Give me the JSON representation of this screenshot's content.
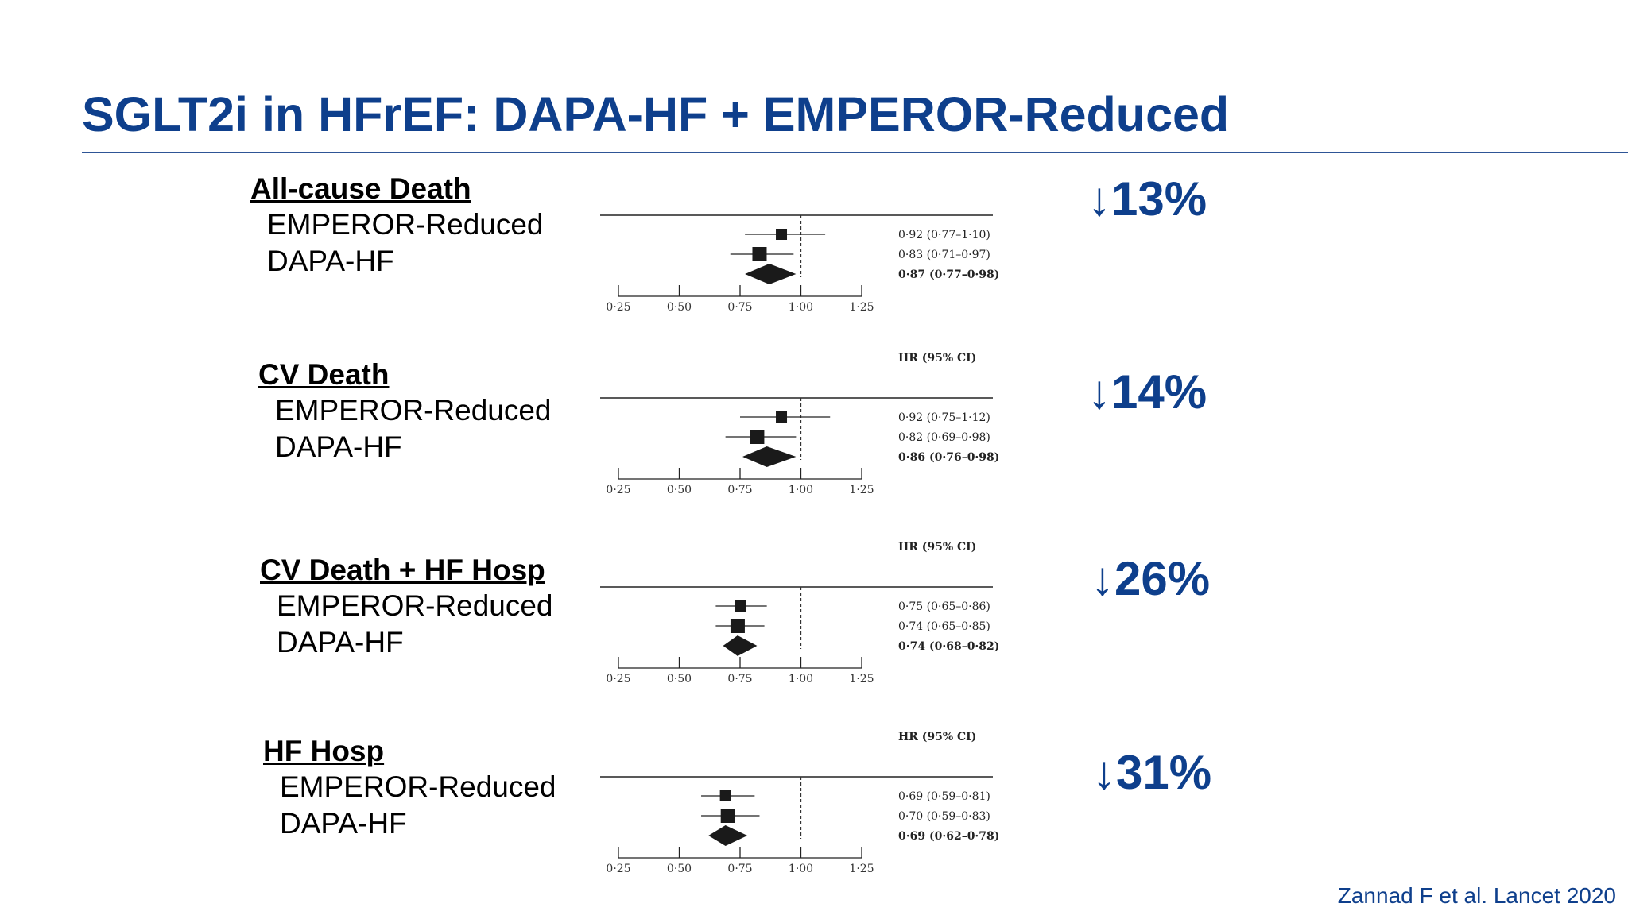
{
  "slide": {
    "title": "SGLT2i in HFrEF: DAPA-HF + EMPEROR-Reduced",
    "citation": "Zannad F et al. Lancet 2020"
  },
  "colors": {
    "title": "#0e3f8c",
    "accent_rule": "#2e5596",
    "marker": "#1a1a1a"
  },
  "panels": [
    {
      "heading": "All-cause Death",
      "rows": [
        "EMPEROR-Reduced",
        "DAPA-HF"
      ],
      "reduction": "13%",
      "arrow": "↓",
      "ci_header": ""
    },
    {
      "heading": "CV Death",
      "rows": [
        "EMPEROR-Reduced",
        "DAPA-HF"
      ],
      "reduction": "14%",
      "arrow": "↓",
      "ci_header": "HR (95% CI)"
    },
    {
      "heading": "CV Death + HF Hosp",
      "rows": [
        "EMPEROR-Reduced",
        "DAPA-HF"
      ],
      "reduction": "26%",
      "arrow": "↓",
      "ci_header": "HR (95% CI)"
    },
    {
      "heading": "HF Hosp",
      "rows": [
        "EMPEROR-Reduced",
        "DAPA-HF"
      ],
      "reduction": "31%",
      "arrow": "↓",
      "ci_header": "HR (95% CI)"
    }
  ],
  "chart_data": [
    {
      "type": "forest",
      "title": "All-cause Death",
      "ci_header": "",
      "xticks": [
        "0·25",
        "0·50",
        "0·75",
        "1·00",
        "1·25"
      ],
      "xlim": [
        0.25,
        1.25
      ],
      "reference_line": 1.0,
      "estimates": [
        {
          "kind": "study",
          "hr": 0.92,
          "lo": 0.77,
          "hi": 1.1,
          "label": "0·92 (0·77–1·10)"
        },
        {
          "kind": "study",
          "hr": 0.83,
          "lo": 0.71,
          "hi": 0.97,
          "label": "0·83 (0·71–0·97)"
        },
        {
          "kind": "pooled",
          "hr": 0.87,
          "lo": 0.77,
          "hi": 0.98,
          "label": "0·87 (0·77–0·98)"
        }
      ]
    },
    {
      "type": "forest",
      "title": "CV Death",
      "ci_header": "HR (95% CI)",
      "xticks": [
        "0·25",
        "0·50",
        "0·75",
        "1·00",
        "1·25"
      ],
      "xlim": [
        0.25,
        1.25
      ],
      "reference_line": 1.0,
      "estimates": [
        {
          "kind": "study",
          "hr": 0.92,
          "lo": 0.75,
          "hi": 1.12,
          "label": "0·92 (0·75–1·12)"
        },
        {
          "kind": "study",
          "hr": 0.82,
          "lo": 0.69,
          "hi": 0.98,
          "label": "0·82 (0·69–0·98)"
        },
        {
          "kind": "pooled",
          "hr": 0.86,
          "lo": 0.76,
          "hi": 0.98,
          "label": "0·86 (0·76–0·98)"
        }
      ]
    },
    {
      "type": "forest",
      "title": "CV Death + HF Hosp",
      "ci_header": "HR (95% CI)",
      "xticks": [
        "0·25",
        "0·50",
        "0·75",
        "1·00",
        "1·25"
      ],
      "xlim": [
        0.25,
        1.25
      ],
      "reference_line": 1.0,
      "estimates": [
        {
          "kind": "study",
          "hr": 0.75,
          "lo": 0.65,
          "hi": 0.86,
          "label": "0·75 (0·65–0·86)"
        },
        {
          "kind": "study",
          "hr": 0.74,
          "lo": 0.65,
          "hi": 0.85,
          "label": "0·74 (0·65–0·85)"
        },
        {
          "kind": "pooled",
          "hr": 0.74,
          "lo": 0.68,
          "hi": 0.82,
          "label": "0·74 (0·68–0·82)"
        }
      ]
    },
    {
      "type": "forest",
      "title": "HF Hosp",
      "ci_header": "HR (95% CI)",
      "xticks": [
        "0·25",
        "0·50",
        "0·75",
        "1·00",
        "1·25"
      ],
      "xlim": [
        0.25,
        1.25
      ],
      "reference_line": 1.0,
      "estimates": [
        {
          "kind": "study",
          "hr": 0.69,
          "lo": 0.59,
          "hi": 0.81,
          "label": "0·69 (0·59–0·81)"
        },
        {
          "kind": "study",
          "hr": 0.7,
          "lo": 0.59,
          "hi": 0.83,
          "label": "0·70 (0·59–0·83)"
        },
        {
          "kind": "pooled",
          "hr": 0.69,
          "lo": 0.62,
          "hi": 0.78,
          "label": "0·69 (0·62–0·78)"
        }
      ]
    }
  ]
}
